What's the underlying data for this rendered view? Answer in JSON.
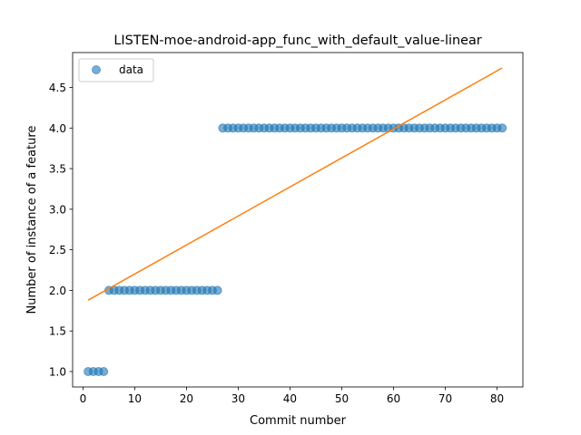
{
  "chart_data": {
    "type": "scatter",
    "title": "LISTEN-moe-android-app_func_with_default_value-linear",
    "xlabel": "Commit number",
    "ylabel": "Number of instance of a feature",
    "xlim": [
      -2.0,
      85.0
    ],
    "ylim": [
      0.81,
      4.93
    ],
    "xticks": [
      0,
      10,
      20,
      30,
      40,
      50,
      60,
      70,
      80
    ],
    "yticks": [
      1.0,
      1.5,
      2.0,
      2.5,
      3.0,
      3.5,
      4.0,
      4.5
    ],
    "ytick_labels": [
      "1.0",
      "1.5",
      "2.0",
      "2.5",
      "3.0",
      "3.5",
      "4.0",
      "4.5"
    ],
    "grid": false,
    "legend": {
      "position": "top-left",
      "entries": [
        "data"
      ]
    },
    "series": [
      {
        "name": "data",
        "kind": "scatter",
        "color": "#1f77b4",
        "segments": [
          {
            "x_start": 1,
            "x_end": 4,
            "y": 1.0
          },
          {
            "x_start": 5,
            "x_end": 26,
            "y": 2.0
          },
          {
            "x_start": 27,
            "x_end": 81,
            "y": 4.0
          }
        ]
      },
      {
        "kind": "line",
        "color": "#ff7f0e",
        "x": [
          1,
          81
        ],
        "y": [
          1.88,
          4.74
        ]
      }
    ]
  }
}
